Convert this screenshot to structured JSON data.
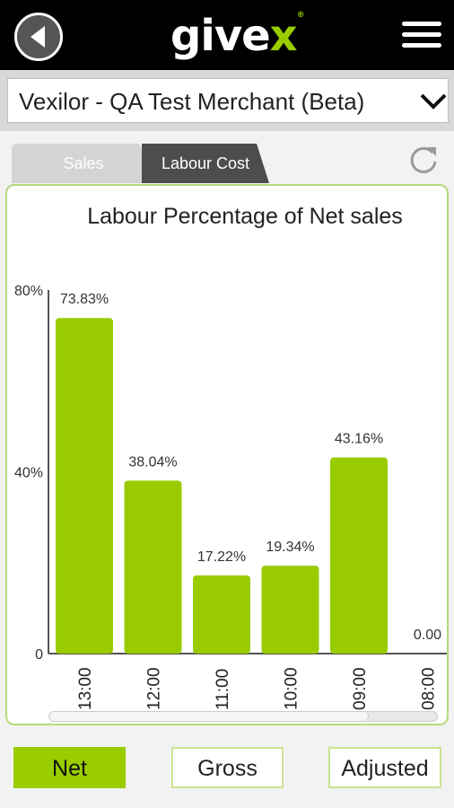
{
  "header": {
    "logo_prefix": "give",
    "logo_x": "x",
    "logo_tm": "®"
  },
  "merchant": {
    "selected": "Vexilor - QA Test Merchant (Beta)"
  },
  "tabs": [
    {
      "label": "Sales",
      "active": false
    },
    {
      "label": "Labour Cost",
      "active": true
    }
  ],
  "colors": {
    "accent": "#9acd00",
    "bar": "#99cc00",
    "panel_border": "#b6d97c"
  },
  "chart_data": {
    "type": "bar",
    "title": "Labour Percentage of Net sales",
    "categories": [
      "13:00",
      "12:00",
      "11:00",
      "10:00",
      "09:00",
      "08:00"
    ],
    "values": [
      73.83,
      38.04,
      17.22,
      19.34,
      43.16,
      0.0
    ],
    "value_labels": [
      "73.83%",
      "38.04%",
      "17.22%",
      "19.34%",
      "43.16%",
      "0.00"
    ],
    "y_ticks": [
      0,
      40,
      80
    ],
    "y_tick_labels": [
      "0",
      "40%",
      "80%"
    ],
    "ylim": [
      0,
      80
    ],
    "grid": false
  },
  "buttons": {
    "net": "Net",
    "gross": "Gross",
    "adjusted": "Adjusted"
  }
}
